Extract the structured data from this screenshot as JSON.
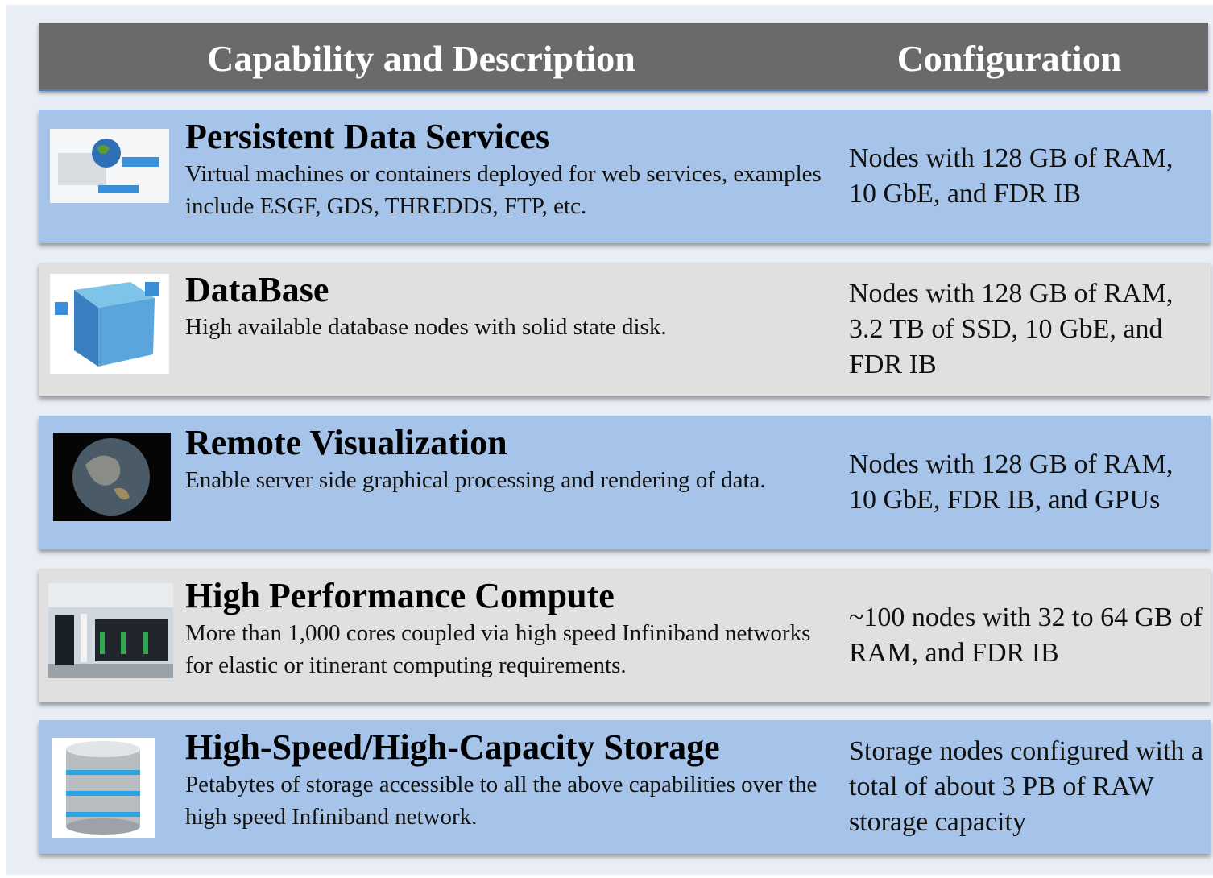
{
  "header": {
    "columns": [
      "Capability and Description",
      "Configuration"
    ]
  },
  "rows": [
    {
      "title": "Persistent Data Services",
      "description": "Virtual machines or containers deployed for web services, examples include ESGF, GDS, THREDDS, FTP, etc.",
      "configuration": "Nodes with 128 GB of RAM, 10 GbE, and FDR IB"
    },
    {
      "title": "DataBase",
      "description": "High available database nodes with solid state disk.",
      "configuration": "Nodes with 128 GB of RAM, 3.2 TB of SSD, 10 GbE, and FDR IB"
    },
    {
      "title": "Remote Visualization",
      "description": "Enable server side graphical processing and rendering of data.",
      "configuration": "Nodes with 128 GB of RAM, 10 GbE, FDR IB, and GPUs"
    },
    {
      "title": "High Performance Compute",
      "description": "More than 1,000 cores coupled via high speed Infiniband networks for elastic or itinerant computing requirements.",
      "configuration": "~100 nodes with 32 to 64 GB of RAM, and FDR IB"
    },
    {
      "title": "High-Speed/High-Capacity Storage",
      "description": "Petabytes of storage accessible to all the above capabilities over the high speed Infiniband network.",
      "configuration": "Storage nodes configured with a total of about 3 PB of RAW storage capacity"
    }
  ]
}
